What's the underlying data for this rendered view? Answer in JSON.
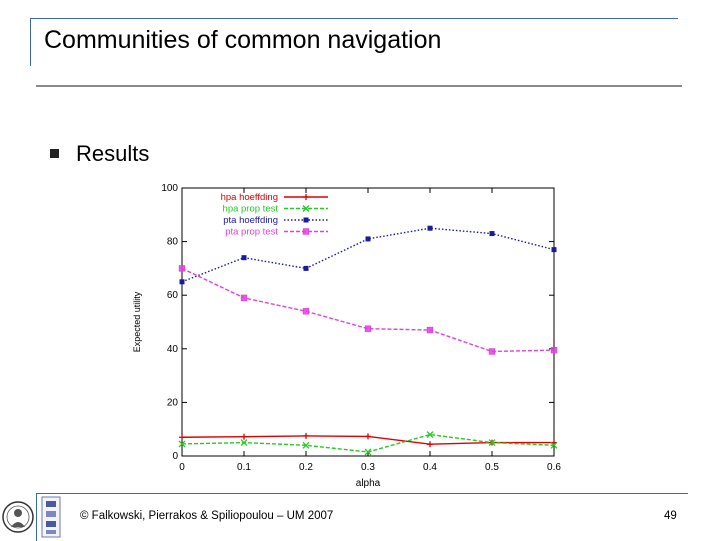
{
  "slide": {
    "title": "Communities of common navigation",
    "bullet": "Results",
    "footer": "© Falkowski, Pierrakos & Spiliopoulou – UM 2007",
    "page_number": "49"
  },
  "colors": {
    "frame": "#3a6aa0",
    "series_hpa_hoeffding": "#e00000",
    "series_hpa_prop_test": "#22cc22",
    "series_pta_hoeffding": "#1a1aa0",
    "series_pta_prop_test": "#e040e0"
  },
  "chart_data": {
    "type": "line",
    "xlabel": "alpha",
    "ylabel": "Expected utility",
    "xlim": [
      0,
      0.6
    ],
    "ylim": [
      0,
      100
    ],
    "x_ticks": [
      "0",
      "0.1",
      "0.2",
      "0.3",
      "0.4",
      "0.5",
      "0.6"
    ],
    "y_ticks": [
      "0",
      "20",
      "40",
      "60",
      "80",
      "100"
    ],
    "legend_position": "top-left",
    "x": [
      0,
      0.1,
      0.2,
      0.3,
      0.4,
      0.5,
      0.6
    ],
    "series": [
      {
        "name": "hpa hoeffding",
        "values": [
          7,
          7.2,
          7.5,
          7.3,
          4.4,
          5,
          5
        ],
        "marker": "plus",
        "dash": "solid"
      },
      {
        "name": "hpa prop test",
        "values": [
          4.5,
          5,
          4,
          1.5,
          8,
          5,
          4
        ],
        "marker": "x",
        "dash": "dashed"
      },
      {
        "name": "pta hoeffding",
        "values": [
          65,
          74,
          70,
          81,
          85,
          83,
          77
        ],
        "marker": "square-filled",
        "dash": "dotted"
      },
      {
        "name": "pta prop test",
        "values": [
          70,
          59,
          54,
          47.5,
          47,
          39,
          39.5
        ],
        "marker": "square",
        "dash": "dashed"
      }
    ]
  }
}
